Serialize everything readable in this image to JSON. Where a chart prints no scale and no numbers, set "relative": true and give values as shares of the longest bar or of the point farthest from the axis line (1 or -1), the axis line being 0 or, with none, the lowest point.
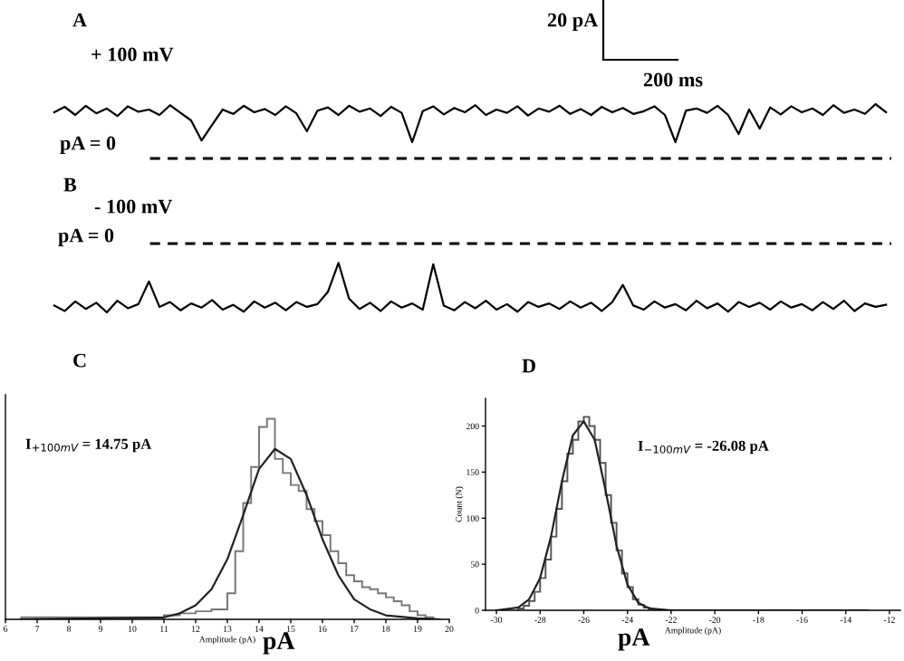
{
  "chart_data": [
    {
      "type": "line",
      "title": "A",
      "relative": true,
      "tick_labels": false,
      "categories": [
        null,
        null,
        null,
        null,
        null,
        null,
        null,
        null,
        null,
        null,
        null,
        null,
        null,
        null,
        null,
        null,
        null,
        null,
        null,
        null,
        null,
        null,
        null,
        null,
        null,
        null,
        null,
        null,
        null,
        null,
        null,
        null,
        null,
        null,
        null,
        null,
        null,
        null,
        null,
        null,
        null,
        null,
        null,
        null,
        null,
        null,
        null,
        null,
        null,
        null,
        null,
        null,
        null,
        null,
        null,
        null,
        null,
        null,
        null,
        null,
        null,
        null,
        null,
        null,
        null,
        null,
        null,
        null,
        null,
        null,
        null,
        null,
        null,
        null,
        null,
        null,
        null,
        null,
        null,
        null
      ],
      "series": [
        {
          "color": "#000000",
          "values": [
            0.85,
            0.95,
            0.8,
            0.97,
            0.83,
            0.92,
            0.78,
            0.96,
            0.86,
            0.9,
            0.8,
            0.98,
            0.84,
            0.7,
            0.33,
            0.62,
            0.9,
            0.82,
            0.97,
            0.85,
            0.91,
            0.8,
            0.96,
            0.83,
            0.5,
            0.88,
            0.94,
            0.8,
            0.97,
            0.86,
            0.92,
            0.78,
            0.95,
            0.84,
            0.3,
            0.87,
            0.96,
            0.81,
            0.93,
            0.85,
            0.98,
            0.8,
            0.9,
            0.84,
            0.96,
            0.79,
            0.92,
            0.86,
            0.97,
            0.82,
            0.91,
            0.8,
            0.95,
            0.85,
            0.93,
            0.82,
            0.87,
            0.96,
            0.8,
            0.3,
            0.88,
            0.92,
            0.84,
            0.97,
            0.8,
            0.45,
            0.9,
            0.55,
            0.94,
            0.81,
            0.96,
            0.85,
            0.92,
            0.8,
            0.98,
            0.84,
            0.9,
            0.82,
            1.0,
            0.85
          ]
        }
      ],
      "ref_lines": [
        {
          "axis": "y",
          "value": 0,
          "label": "pA = 0",
          "line_style": "dashed",
          "color": "#000000"
        }
      ],
      "annotations": [
        "+ 100 mV",
        "20 pA",
        "200 ms"
      ]
    },
    {
      "type": "line",
      "title": "B",
      "relative": true,
      "tick_labels": false,
      "categories": [
        null,
        null,
        null,
        null,
        null,
        null,
        null,
        null,
        null,
        null,
        null,
        null,
        null,
        null,
        null,
        null,
        null,
        null,
        null,
        null,
        null,
        null,
        null,
        null,
        null,
        null,
        null,
        null,
        null,
        null,
        null,
        null,
        null,
        null,
        null,
        null,
        null,
        null,
        null,
        null,
        null,
        null,
        null,
        null,
        null,
        null,
        null,
        null,
        null,
        null,
        null,
        null,
        null,
        null,
        null,
        null,
        null,
        null,
        null,
        null,
        null,
        null,
        null,
        null,
        null,
        null,
        null,
        null,
        null,
        null,
        null,
        null,
        null,
        null,
        null,
        null,
        null,
        null,
        null,
        null
      ],
      "series": [
        {
          "color": "#000000",
          "values": [
            -0.9,
            -0.98,
            -0.84,
            -0.95,
            -0.86,
            -1.0,
            -0.83,
            -0.94,
            -0.88,
            -0.55,
            -0.92,
            -0.85,
            -0.97,
            -0.87,
            -0.93,
            -0.82,
            -0.96,
            -0.89,
            -0.99,
            -0.84,
            -0.93,
            -0.86,
            -0.97,
            -0.85,
            -0.92,
            -0.88,
            -0.7,
            -0.28,
            -0.8,
            -0.95,
            -0.86,
            -0.98,
            -0.84,
            -0.93,
            -0.87,
            -0.96,
            -0.3,
            -0.9,
            -0.97,
            -0.85,
            -0.94,
            -0.83,
            -0.96,
            -0.88,
            -0.99,
            -0.85,
            -0.92,
            -0.87,
            -0.95,
            -0.84,
            -0.93,
            -0.86,
            -0.98,
            -0.85,
            -0.6,
            -0.9,
            -0.96,
            -0.84,
            -0.93,
            -0.88,
            -0.97,
            -0.83,
            -0.94,
            -0.87,
            -0.99,
            -0.85,
            -0.92,
            -0.86,
            -0.96,
            -0.84,
            -0.93,
            -0.88,
            -0.97,
            -0.85,
            -0.95,
            -0.83,
            -0.98,
            -0.87,
            -0.92,
            -0.89
          ]
        }
      ],
      "ref_lines": [
        {
          "axis": "y",
          "value": 0,
          "label": "pA = 0",
          "line_style": "dashed",
          "color": "#000000"
        }
      ],
      "annotations": [
        "- 100 mV"
      ]
    },
    {
      "type": "histogram",
      "title": "C",
      "relative": true,
      "tick_labels": "x",
      "color": "#777777",
      "bins": [
        6.5,
        11,
        11.5,
        12,
        12.5,
        13,
        13.25,
        13.5,
        13.75,
        14,
        14.25,
        14.5,
        14.75,
        15,
        15.25,
        15.5,
        15.75,
        16,
        16.25,
        16.5,
        16.75,
        17,
        17.25,
        17.5,
        17.75,
        18,
        18.25,
        18.5,
        18.75,
        19,
        19.25,
        19.5
      ],
      "values": [
        0.01,
        0.02,
        0.03,
        0.04,
        0.05,
        0.13,
        0.34,
        0.58,
        0.76,
        0.96,
        1.0,
        0.8,
        0.73,
        0.67,
        0.64,
        0.55,
        0.49,
        0.42,
        0.34,
        0.28,
        0.22,
        0.19,
        0.16,
        0.15,
        0.13,
        0.11,
        0.09,
        0.07,
        0.04,
        0.02,
        0.01
      ],
      "series": [
        {
          "type": "line",
          "color": "#222222",
          "x": [
            6.5,
            11,
            11.5,
            12,
            12.5,
            13,
            13.5,
            14,
            14.5,
            15,
            15.5,
            16,
            16.5,
            17,
            17.5,
            18,
            19,
            19.7
          ],
          "values": [
            0.0,
            0.01,
            0.03,
            0.07,
            0.15,
            0.3,
            0.52,
            0.75,
            0.85,
            0.8,
            0.62,
            0.4,
            0.22,
            0.1,
            0.05,
            0.02,
            0.005,
            0.0
          ]
        }
      ],
      "xlim": [
        6,
        20
      ],
      "xticks": [
        6,
        7,
        8,
        9,
        10,
        11,
        12,
        13,
        14,
        15,
        16,
        17,
        18,
        19,
        20
      ],
      "xlabel": "Amplitude (pA)",
      "annotations": [
        "I$_{+100mV}$ = 14.75 pA",
        "pA"
      ]
    },
    {
      "type": "histogram",
      "title": "D",
      "color": "#555555",
      "bins": [
        -29,
        -28.75,
        -28.5,
        -28.25,
        -28,
        -27.75,
        -27.5,
        -27.25,
        -27,
        -26.75,
        -26.5,
        -26.25,
        -26,
        -25.75,
        -25.5,
        -25.25,
        -25,
        -24.75,
        -24.5,
        -24.25,
        -24,
        -23.75,
        -23.5,
        -23.25,
        -23
      ],
      "values": [
        2,
        5,
        10,
        20,
        35,
        55,
        80,
        110,
        140,
        170,
        185,
        205,
        210,
        200,
        185,
        160,
        125,
        95,
        65,
        40,
        25,
        12,
        6,
        3
      ],
      "series": [
        {
          "type": "line",
          "color": "#222222",
          "x": [
            -30,
            -29,
            -28.5,
            -28,
            -27.5,
            -27,
            -26.5,
            -26,
            -25.5,
            -25,
            -24.5,
            -24,
            -23.5,
            -23,
            -22,
            -13
          ],
          "values": [
            0,
            3,
            12,
            35,
            80,
            140,
            190,
            205,
            185,
            130,
            70,
            28,
            8,
            2,
            0,
            0
          ]
        }
      ],
      "xlim": [
        -30.5,
        -11.5
      ],
      "xticks": [
        -30,
        -28,
        -26,
        -24,
        -22,
        -20,
        -18,
        -16,
        -14,
        -12
      ],
      "ylim": [
        0,
        230
      ],
      "yticks": [
        0,
        50,
        100,
        150,
        200
      ],
      "xlabel": "Amplitude (pA)",
      "ylabel": "Count (N)",
      "annotations": [
        "I$_{−100mV}$ = -26.08 pA",
        "pA"
      ]
    }
  ]
}
